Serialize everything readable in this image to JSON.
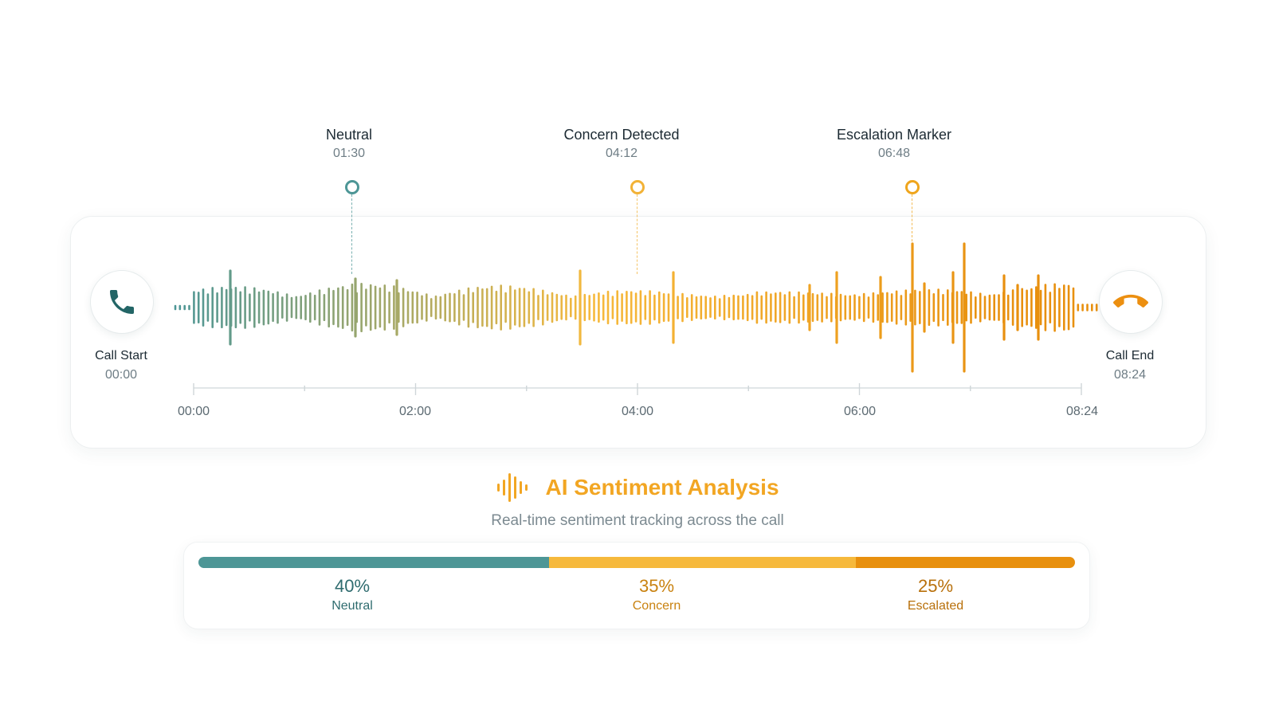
{
  "colors": {
    "neutral": "#4d9696",
    "concern": "#f6b93c",
    "escalated": "#e8900e",
    "title": "#f2a623"
  },
  "markers": [
    {
      "label": "Neutral",
      "time": "01:30",
      "seconds": 90,
      "color": "#4d9696"
    },
    {
      "label": "Concern Detected",
      "time": "04:12",
      "seconds": 252,
      "color": "#f2b236"
    },
    {
      "label": "Escalation Marker",
      "time": "06:48",
      "seconds": 408,
      "color": "#efa51c"
    }
  ],
  "call_start": {
    "label": "Call Start",
    "time": "00:00",
    "icon": "phone-icon"
  },
  "call_end": {
    "label": "Call End",
    "time": "08:24",
    "icon": "phone-hangup-icon"
  },
  "timeline": {
    "duration_seconds": 504,
    "ticks": [
      "00:00",
      "02:00",
      "04:00",
      "06:00",
      "08:24"
    ]
  },
  "analysis": {
    "title": "AI Sentiment Analysis",
    "subtitle": "Real-time sentiment tracking across the call",
    "icon": "audio-wave-icon"
  },
  "distribution": [
    {
      "value": "40%",
      "fraction": 0.4,
      "label": "Neutral",
      "color": "#4d9696",
      "text_color": "#2f6c6f"
    },
    {
      "value": "35%",
      "fraction": 0.35,
      "label": "Concern",
      "color": "#f6b93c",
      "text_color": "#c98210"
    },
    {
      "value": "25%",
      "fraction": 0.25,
      "label": "Escalated",
      "color": "#e8900e",
      "text_color": "#b8700b"
    }
  ]
}
